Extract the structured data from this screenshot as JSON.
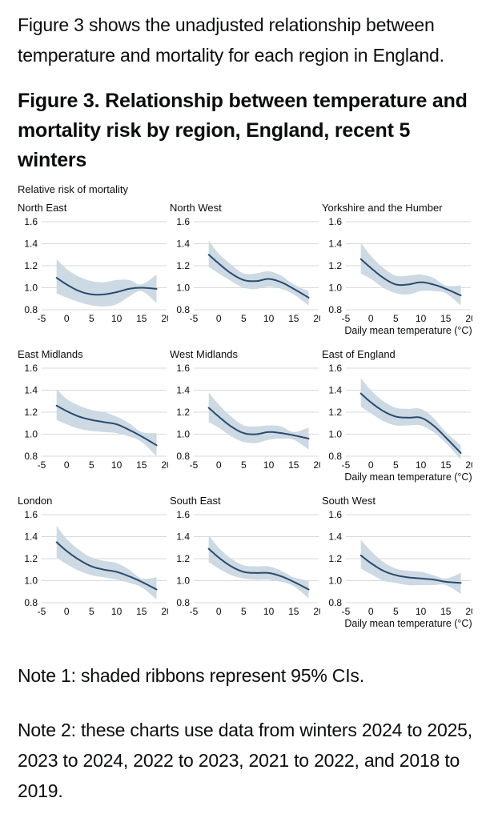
{
  "intro": "Figure 3 shows the unadjusted relationship between temperature and mortality for each region in England.",
  "heading": "Figure 3. Relationship between temperature and mortality risk by region, England, recent 5 winters",
  "notes": {
    "note1": "Note 1: shaded ribbons represent 95% CIs.",
    "note2": "Note 2: these charts use data from winters 2024 to 2025, 2023 to 2024, 2022 to 2023, 2021 to 2022, and 2018 to 2019."
  },
  "colors": {
    "line": "#284b6e",
    "ribbon": "#cdd9e3",
    "grid": "#d9d9d9",
    "text": "#0b0c0c"
  },
  "chart_data": {
    "type": "line",
    "title": "Figure 3. Relationship between temperature and mortality risk by region, England, recent 5 winters",
    "ylabel": "Relative risk of mortality",
    "xlabel": "Daily mean temperature (°C)",
    "xlim": [
      -5,
      20
    ],
    "ylim": [
      0.8,
      1.6
    ],
    "x_ticks": [
      -5,
      0,
      5,
      10,
      15,
      20
    ],
    "y_ticks": [
      0.8,
      1.0,
      1.2,
      1.4,
      1.6
    ],
    "grid": "horizontal-only",
    "legend": "none",
    "ribbon_meaning": "95% CI",
    "x": [
      -2,
      0,
      2.5,
      5,
      7.5,
      10,
      12.5,
      15,
      18
    ],
    "series": [
      {
        "name": "North East",
        "xlabel": "",
        "line": [
          1.09,
          1.03,
          0.97,
          0.94,
          0.94,
          0.96,
          0.99,
          1.0,
          0.99
        ],
        "upper": [
          1.26,
          1.17,
          1.1,
          1.06,
          1.05,
          1.07,
          1.07,
          1.03,
          1.12
        ],
        "lower": [
          0.95,
          0.91,
          0.87,
          0.84,
          0.83,
          0.85,
          0.92,
          0.97,
          0.86
        ]
      },
      {
        "name": "North West",
        "xlabel": "",
        "line": [
          1.3,
          1.22,
          1.13,
          1.07,
          1.06,
          1.08,
          1.05,
          0.99,
          0.91
        ],
        "upper": [
          1.43,
          1.31,
          1.21,
          1.13,
          1.13,
          1.15,
          1.11,
          1.03,
          0.97
        ],
        "lower": [
          1.19,
          1.13,
          1.06,
          1.0,
          0.99,
          1.01,
          0.99,
          0.94,
          0.84
        ]
      },
      {
        "name": "Yorkshire and the Humber",
        "xlabel": "Daily mean temperature (°C)",
        "line": [
          1.26,
          1.18,
          1.09,
          1.03,
          1.03,
          1.05,
          1.03,
          0.99,
          0.93
        ],
        "upper": [
          1.41,
          1.29,
          1.18,
          1.11,
          1.11,
          1.12,
          1.09,
          1.02,
          1.02
        ],
        "lower": [
          1.13,
          1.08,
          1.0,
          0.95,
          0.94,
          0.97,
          0.97,
          0.95,
          0.84
        ]
      },
      {
        "name": "East Midlands",
        "xlabel": "",
        "line": [
          1.26,
          1.21,
          1.16,
          1.13,
          1.11,
          1.09,
          1.04,
          0.98,
          0.9
        ],
        "upper": [
          1.41,
          1.32,
          1.26,
          1.22,
          1.2,
          1.16,
          1.1,
          1.02,
          1.01
        ],
        "lower": [
          1.13,
          1.09,
          1.05,
          1.03,
          1.02,
          1.01,
          0.98,
          0.93,
          0.8
        ]
      },
      {
        "name": "West Midlands",
        "xlabel": "",
        "line": [
          1.24,
          1.16,
          1.07,
          1.01,
          1.0,
          1.02,
          1.01,
          0.99,
          0.96
        ],
        "upper": [
          1.38,
          1.27,
          1.16,
          1.08,
          1.07,
          1.08,
          1.07,
          1.02,
          1.06
        ],
        "lower": [
          1.11,
          1.06,
          0.98,
          0.93,
          0.92,
          0.95,
          0.96,
          0.95,
          0.86
        ]
      },
      {
        "name": "East of England",
        "xlabel": "Daily mean temperature (°C)",
        "line": [
          1.37,
          1.29,
          1.21,
          1.16,
          1.15,
          1.15,
          1.08,
          0.97,
          0.83
        ],
        "upper": [
          1.51,
          1.4,
          1.3,
          1.24,
          1.23,
          1.23,
          1.15,
          1.02,
          0.9
        ],
        "lower": [
          1.25,
          1.19,
          1.12,
          1.08,
          1.08,
          1.08,
          1.02,
          0.92,
          0.77
        ]
      },
      {
        "name": "London",
        "xlabel": "",
        "line": [
          1.35,
          1.27,
          1.19,
          1.13,
          1.1,
          1.08,
          1.04,
          0.99,
          0.92
        ],
        "upper": [
          1.5,
          1.38,
          1.28,
          1.21,
          1.18,
          1.16,
          1.1,
          1.02,
          1.03
        ],
        "lower": [
          1.21,
          1.15,
          1.09,
          1.05,
          1.03,
          1.01,
          0.98,
          0.94,
          0.83
        ]
      },
      {
        "name": "South East",
        "xlabel": "",
        "line": [
          1.29,
          1.21,
          1.13,
          1.08,
          1.07,
          1.07,
          1.04,
          0.99,
          0.92
        ],
        "upper": [
          1.41,
          1.3,
          1.2,
          1.14,
          1.13,
          1.13,
          1.09,
          1.03,
          1.0
        ],
        "lower": [
          1.17,
          1.11,
          1.05,
          1.02,
          1.01,
          1.01,
          0.99,
          0.95,
          0.84
        ]
      },
      {
        "name": "South West",
        "xlabel": "Daily mean temperature (°C)",
        "line": [
          1.23,
          1.16,
          1.09,
          1.05,
          1.03,
          1.02,
          1.01,
          0.99,
          0.98
        ],
        "upper": [
          1.37,
          1.27,
          1.17,
          1.11,
          1.09,
          1.08,
          1.05,
          1.02,
          1.07
        ],
        "lower": [
          1.11,
          1.06,
          1.0,
          0.98,
          0.96,
          0.96,
          0.96,
          0.96,
          0.88
        ]
      }
    ]
  }
}
